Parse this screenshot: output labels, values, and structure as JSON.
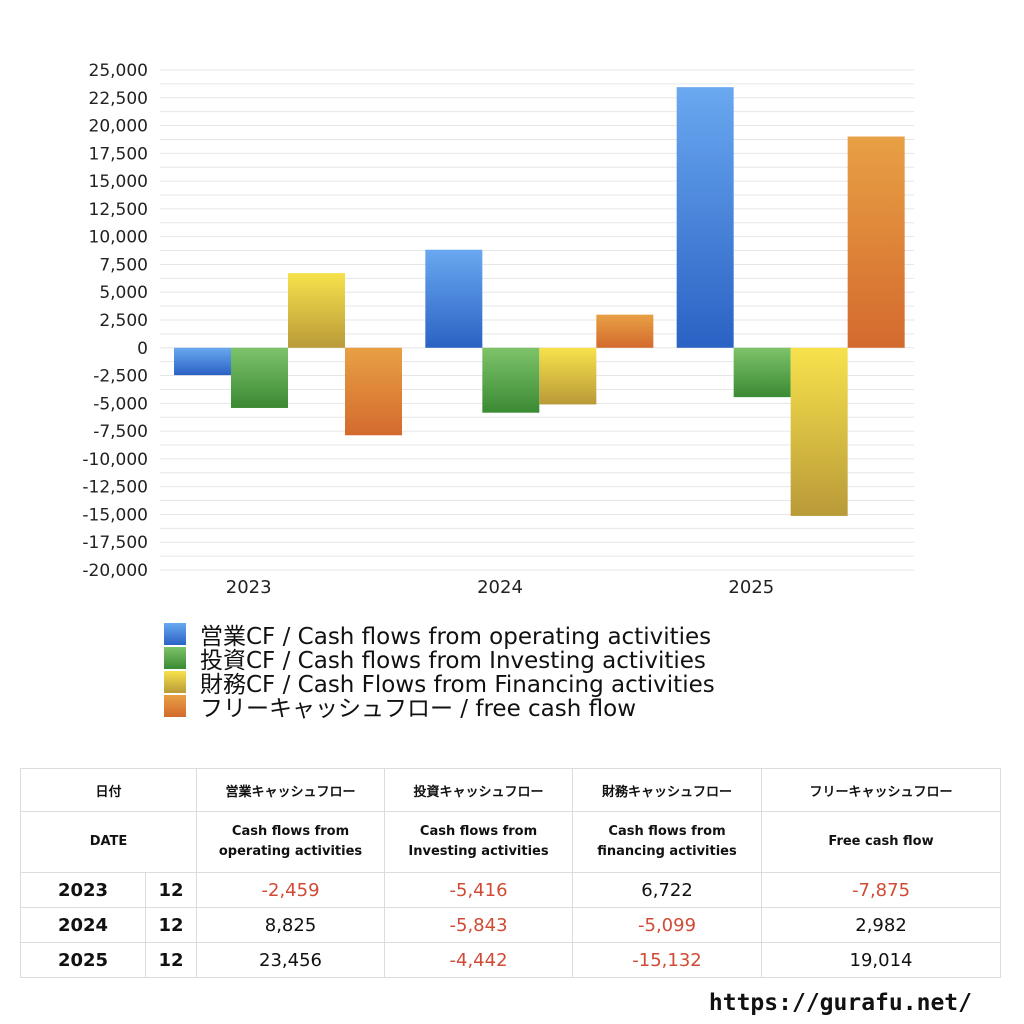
{
  "chart_data": {
    "type": "bar",
    "categories": [
      "2023",
      "2024",
      "2025"
    ],
    "series": [
      {
        "name": "営業CF / Cash flows from operating activities",
        "values": [
          -2459,
          8825,
          23456
        ],
        "color_top": "#6aa8f0",
        "color_bottom": "#2a62c4"
      },
      {
        "name": "投資CF / Cash flows from Investing activities",
        "values": [
          -5416,
          -5843,
          -4442
        ],
        "color_top": "#7dc36a",
        "color_bottom": "#3a8a33"
      },
      {
        "name": "財務CF / Cash Flows from Financing activities",
        "values": [
          6722,
          -5099,
          -15132
        ],
        "color_top": "#f7e24c",
        "color_bottom": "#b99a38"
      },
      {
        "name": "フリーキャッシュフロー / free cash flow",
        "values": [
          -7875,
          2982,
          19014
        ],
        "color_top": "#e8a044",
        "color_bottom": "#d46a2e"
      }
    ],
    "ylim": [
      -20000,
      25000
    ],
    "yticks": [
      "25,000",
      "22,500",
      "20,000",
      "17,500",
      "15,000",
      "12,500",
      "10,000",
      "7,500",
      "5,000",
      "2,500",
      "0",
      "-2,500",
      "-5,000",
      "-7,500",
      "-10,000",
      "-12,500",
      "-15,000",
      "-17,500",
      "-20,000"
    ],
    "grid": true,
    "legend_position": "bottom-left"
  },
  "table": {
    "header1": [
      "日付",
      "",
      "営業キャッシュフロー",
      "投資キャッシュフロー",
      "財務キャッシュフロー",
      "フリーキャッシュフロー"
    ],
    "header2": [
      "DATE",
      "",
      "Cash flows from\noperating activities",
      "Cash flows from\nInvesting activities",
      "Cash flows from\nfinancing activities",
      "Free cash flow"
    ],
    "rows": [
      {
        "year": "2023",
        "month": "12",
        "cells": [
          "-2,459",
          "-5,416",
          "6,722",
          "-7,875"
        ]
      },
      {
        "year": "2024",
        "month": "12",
        "cells": [
          "8,825",
          "-5,843",
          "-5,099",
          "2,982"
        ]
      },
      {
        "year": "2025",
        "month": "12",
        "cells": [
          "23,456",
          "-4,442",
          "-15,132",
          "19,014"
        ]
      }
    ],
    "negative_color": "#d04a35"
  },
  "site_url": "https://gurafu.net/"
}
